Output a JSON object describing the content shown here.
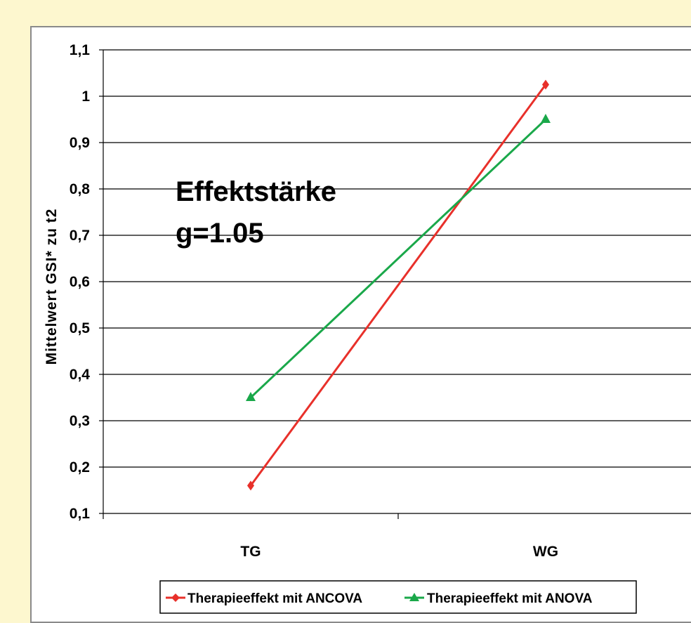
{
  "colors": {
    "background": "#fdf7cf",
    "plot_background": "#ffffff",
    "ancova": "#e8302a",
    "anova": "#1aa84a"
  },
  "chart_data": {
    "type": "line",
    "categories": [
      "TG",
      "WG"
    ],
    "series": [
      {
        "name": "Therapieeffekt mit ANCOVA",
        "values": [
          0.16,
          1.025
        ],
        "color": "#e8302a",
        "marker": "diamond"
      },
      {
        "name": "Therapieeffekt mit ANOVA",
        "values": [
          0.35,
          0.95
        ],
        "color": "#1aa84a",
        "marker": "triangle"
      }
    ],
    "ylabel": "Mittelwert GSI* zu t2",
    "xlabel": "",
    "ylim": [
      0.1,
      1.1
    ],
    "yticks": [
      "0,1",
      "0,2",
      "0,3",
      "0,4",
      "0,5",
      "0,6",
      "0,7",
      "0,8",
      "0,9",
      "1",
      "1,1"
    ],
    "grid": true,
    "legend_position": "bottom",
    "annotation": [
      "Effektstärke",
      "g=1.05"
    ]
  }
}
